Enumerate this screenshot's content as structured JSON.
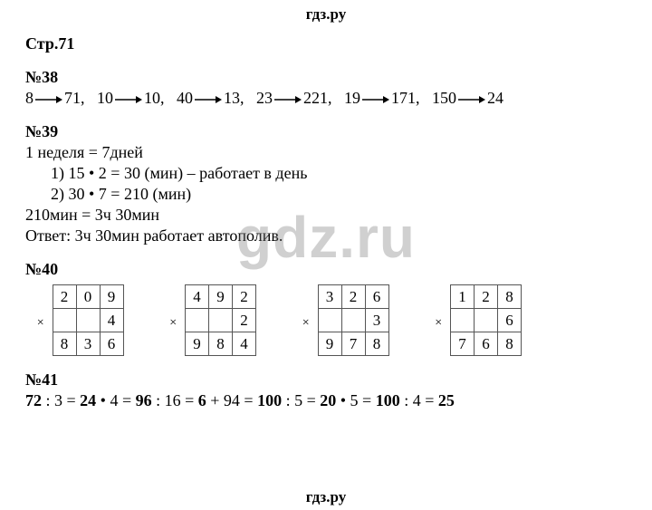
{
  "logo_top": "гдз.ру",
  "logo_bottom": "гдз.ру",
  "watermark": "gdz.ru",
  "page_str": "Стр.71",
  "ex38": {
    "num": "№38",
    "pairs": [
      {
        "a": "8",
        "b": "71"
      },
      {
        "a": "10",
        "b": "10"
      },
      {
        "a": "40",
        "b": "13"
      },
      {
        "a": "23",
        "b": "221"
      },
      {
        "a": "19",
        "b": "171"
      },
      {
        "a": "150",
        "b": "24"
      }
    ]
  },
  "ex39": {
    "num": "№39",
    "l1": "1 неделя = 7дней",
    "l2": "1)  15 • 2 = 30 (мин) – работает в день",
    "l3": "2)  30 • 7 = 210 (мин)",
    "l4": "210мин = 3ч 30мин",
    "l5": "Ответ: 3ч 30мин работает автополив."
  },
  "ex40": {
    "num": "№40",
    "tables": [
      {
        "top": [
          "2",
          "0",
          "9"
        ],
        "mult": "4",
        "res": [
          "8",
          "3",
          "6"
        ]
      },
      {
        "top": [
          "4",
          "9",
          "2"
        ],
        "mult": "2",
        "res": [
          "9",
          "8",
          "4"
        ]
      },
      {
        "top": [
          "3",
          "2",
          "6"
        ],
        "mult": "3",
        "res": [
          "9",
          "7",
          "8"
        ]
      },
      {
        "top": [
          "1",
          "2",
          "8"
        ],
        "mult": "6",
        "res": [
          "7",
          "6",
          "8"
        ]
      }
    ]
  },
  "ex41": {
    "num": "№41",
    "chain": [
      {
        "t": "72",
        "b": true
      },
      {
        "t": " : 3 = ",
        "b": false
      },
      {
        "t": "24",
        "b": true
      },
      {
        "t": " • 4 = ",
        "b": false
      },
      {
        "t": "96",
        "b": true
      },
      {
        "t": " : 16 = ",
        "b": false
      },
      {
        "t": "6",
        "b": true
      },
      {
        "t": " + 94 = ",
        "b": false
      },
      {
        "t": "100",
        "b": true
      },
      {
        "t": " : 5 = ",
        "b": false
      },
      {
        "t": "20",
        "b": true
      },
      {
        "t": " • 5 = ",
        "b": false
      },
      {
        "t": "100",
        "b": true
      },
      {
        "t": " : 4 = ",
        "b": false
      },
      {
        "t": "25",
        "b": true
      }
    ]
  },
  "arrow_svg": {
    "w": 32,
    "h": 12,
    "stroke": "#000"
  }
}
